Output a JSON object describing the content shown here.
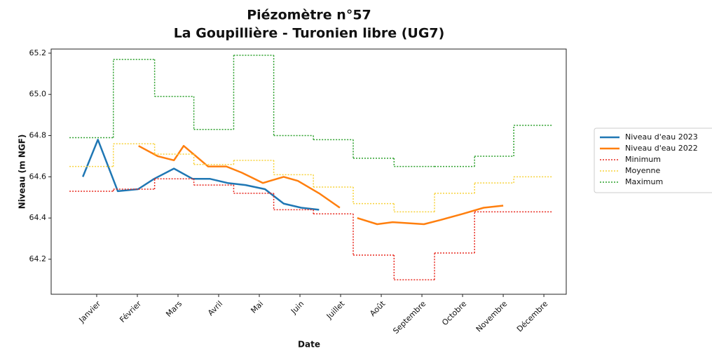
{
  "chart_data": {
    "type": "line",
    "title": "Piézomètre n°57",
    "subtitle": "La Goupillière - Turonien libre (UG7)",
    "x_label": "Date",
    "y_label": "Niveau (m NGF)",
    "xlim": [
      -0.12,
      12.55
    ],
    "ylim": [
      64.03,
      65.22
    ],
    "xticks": [
      {
        "value": 1,
        "label": "Janvier"
      },
      {
        "value": 2,
        "label": "Février"
      },
      {
        "value": 3,
        "label": "Mars"
      },
      {
        "value": 4,
        "label": "Avril"
      },
      {
        "value": 5,
        "label": "Mai"
      },
      {
        "value": 6,
        "label": "Juin"
      },
      {
        "value": 7,
        "label": "Juillet"
      },
      {
        "value": 8,
        "label": "Août"
      },
      {
        "value": 9,
        "label": "Septembre"
      },
      {
        "value": 10,
        "label": "Octobre"
      },
      {
        "value": 11,
        "label": "Novembre"
      },
      {
        "value": 12,
        "label": "Décembre"
      }
    ],
    "yticks": [
      64.2,
      64.4,
      64.6,
      64.8,
      {
        "value": 65,
        "label": "65.0"
      },
      65.2
    ],
    "grid": false,
    "legend": "outside right",
    "series": [
      {
        "name": "Niveau d'eau 2023",
        "color": "#1f77b4",
        "linestyle": "solid",
        "drawstyle": "default",
        "x": [
          0.66,
          1.03,
          1.52,
          2.02,
          2.41,
          2.9,
          3.36,
          3.79,
          4.22,
          4.66,
          5.14,
          5.6,
          6.03,
          6.47
        ],
        "values": [
          64.6,
          64.78,
          64.53,
          64.54,
          64.59,
          64.64,
          64.59,
          64.59,
          64.57,
          64.56,
          64.54,
          64.47,
          64.45,
          64.44
        ]
      },
      {
        "name": "Niveau d'eau 2022",
        "color": "#ff7f0e",
        "linestyle": "solid",
        "drawstyle": "default",
        "x": [
          2.03,
          2.5,
          2.9,
          3.14,
          3.74,
          4.19,
          4.57,
          5.09,
          5.6,
          5.95,
          6.47,
          6.98,
          null,
          7.41,
          7.9,
          8.28,
          9.05,
          9.45,
          10.0,
          10.52,
          11.0
        ],
        "values": [
          64.75,
          64.7,
          64.68,
          64.75,
          64.65,
          64.65,
          64.62,
          64.57,
          64.6,
          64.58,
          64.52,
          64.45,
          null,
          64.4,
          64.37,
          64.38,
          64.37,
          64.39,
          64.42,
          64.45,
          64.46
        ]
      },
      {
        "name": "Minimum",
        "color": "#e8281e",
        "linestyle": "dotted",
        "drawstyle": "steps-mid",
        "x": [
          0.87,
          1.95,
          2.9,
          3.88,
          4.86,
          5.85,
          6.81,
          7.81,
          8.82,
          9.8,
          10.79,
          11.73
        ],
        "values": [
          64.53,
          64.54,
          64.59,
          64.56,
          64.52,
          64.44,
          64.42,
          64.22,
          64.1,
          64.23,
          64.43,
          64.43
        ]
      },
      {
        "name": "Moyenne",
        "color": "#f7d23a",
        "linestyle": "dotted",
        "drawstyle": "steps-mid",
        "x": [
          0.87,
          1.95,
          2.9,
          3.88,
          4.86,
          5.85,
          6.81,
          7.81,
          8.82,
          9.8,
          10.79,
          11.73
        ],
        "values": [
          64.65,
          64.76,
          64.71,
          64.66,
          64.68,
          64.61,
          64.55,
          64.47,
          64.43,
          64.52,
          64.57,
          64.6
        ]
      },
      {
        "name": "Maximum",
        "color": "#2ca02c",
        "linestyle": "dotted",
        "drawstyle": "steps-mid",
        "x": [
          0.87,
          1.95,
          2.9,
          3.88,
          4.86,
          5.85,
          6.81,
          7.81,
          8.82,
          9.8,
          10.79,
          11.73
        ],
        "values": [
          64.79,
          65.17,
          64.99,
          64.83,
          65.19,
          64.8,
          64.78,
          64.69,
          64.65,
          64.65,
          64.7,
          64.85
        ]
      }
    ]
  }
}
